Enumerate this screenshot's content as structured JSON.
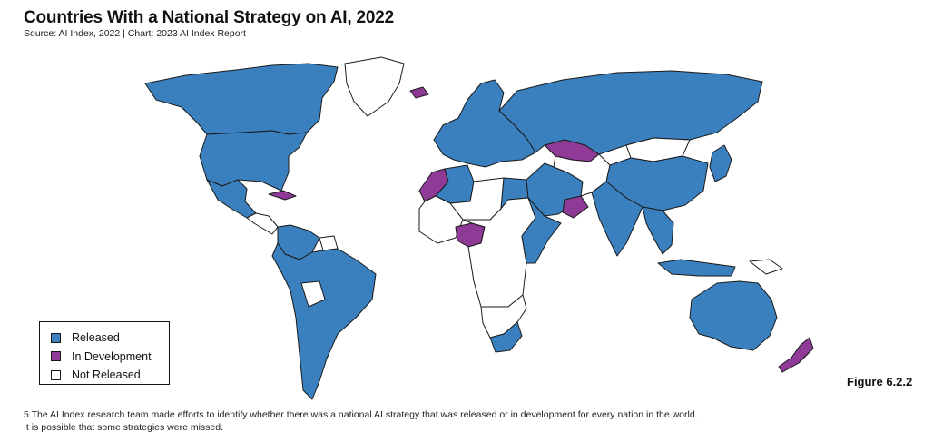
{
  "header": {
    "title": "Countries With a National Strategy on AI, 2022",
    "subtitle": "Source: AI Index, 2022 | Chart: 2023 AI Index Report"
  },
  "colors": {
    "released": "#3a80bf",
    "in_development": "#8e3a96",
    "not_released": "#ffffff",
    "border": "#1a1a1a"
  },
  "legend": {
    "items": [
      {
        "key": "released",
        "label": "Released"
      },
      {
        "key": "in_development",
        "label": "In Development"
      },
      {
        "key": "not_released",
        "label": "Not Released"
      }
    ]
  },
  "figure_label": "Figure 6.2.2",
  "footnote": {
    "line1": "5 The AI Index research team made efforts to identify whether there was a national AI strategy that was released or in development for every nation in the world.",
    "line2": "It is possible that some strategies were missed."
  },
  "regions": [
    {
      "name": "canada",
      "status": "released"
    },
    {
      "name": "usa",
      "status": "released"
    },
    {
      "name": "mexico",
      "status": "released"
    },
    {
      "name": "central-america",
      "status": "not_released"
    },
    {
      "name": "cuba",
      "status": "in_development"
    },
    {
      "name": "greenland",
      "status": "not_released"
    },
    {
      "name": "iceland",
      "status": "in_development"
    },
    {
      "name": "colombia-venezuela",
      "status": "released"
    },
    {
      "name": "guianas",
      "status": "not_released"
    },
    {
      "name": "brazil-peru-chile-argentina",
      "status": "released"
    },
    {
      "name": "bolivia",
      "status": "not_released"
    },
    {
      "name": "europe",
      "status": "released"
    },
    {
      "name": "morocco",
      "status": "in_development"
    },
    {
      "name": "algeria-tunisia",
      "status": "released"
    },
    {
      "name": "libya-sahel",
      "status": "not_released"
    },
    {
      "name": "egypt",
      "status": "released"
    },
    {
      "name": "west-africa",
      "status": "not_released"
    },
    {
      "name": "nigeria",
      "status": "in_development"
    },
    {
      "name": "central-africa",
      "status": "not_released"
    },
    {
      "name": "ethiopia-kenya",
      "status": "released"
    },
    {
      "name": "southern-africa",
      "status": "not_released"
    },
    {
      "name": "south-africa",
      "status": "released"
    },
    {
      "name": "middle-east",
      "status": "released"
    },
    {
      "name": "oman",
      "status": "in_development"
    },
    {
      "name": "uzbekistan-kazakh-belt",
      "status": "in_development"
    },
    {
      "name": "central-asia",
      "status": "not_released"
    },
    {
      "name": "russia",
      "status": "released"
    },
    {
      "name": "mongolia",
      "status": "not_released"
    },
    {
      "name": "china",
      "status": "released"
    },
    {
      "name": "india",
      "status": "released"
    },
    {
      "name": "southeast-asia",
      "status": "released"
    },
    {
      "name": "japan-korea",
      "status": "released"
    },
    {
      "name": "indonesia",
      "status": "released"
    },
    {
      "name": "papua-new-guinea",
      "status": "not_released"
    },
    {
      "name": "australia",
      "status": "released"
    },
    {
      "name": "new-zealand",
      "status": "in_development"
    }
  ]
}
